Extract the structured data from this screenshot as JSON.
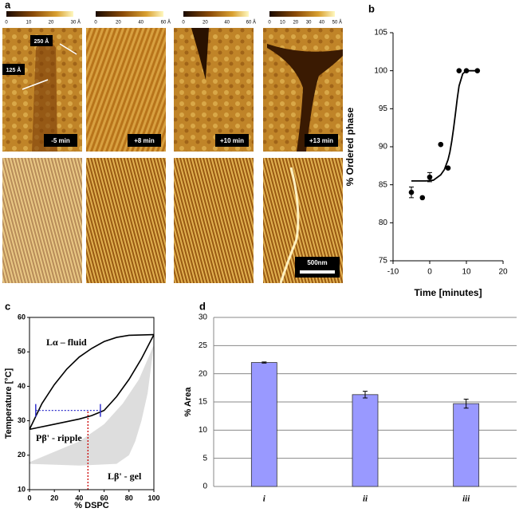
{
  "panel_labels": [
    "a",
    "b",
    "c",
    "d"
  ],
  "panel_a": {
    "colorbars": [
      {
        "ticks": [
          0,
          10,
          20,
          30
        ],
        "unit": "Å"
      },
      {
        "ticks": [
          0,
          20,
          40,
          60
        ],
        "unit": "Å"
      },
      {
        "ticks": [
          0,
          20,
          40,
          60
        ],
        "unit": "Å"
      },
      {
        "ticks": [
          0,
          10,
          20,
          30,
          40,
          50
        ],
        "unit": "Å"
      }
    ],
    "time_labels": [
      "-5 min",
      "+8 min",
      "+10 min",
      "+13 min"
    ],
    "annotations": [
      "250 Å",
      "125 Å"
    ],
    "scale_bar": "500nm"
  },
  "chart_data": [
    {
      "type": "scatter",
      "xlabel": "Time [minutes]",
      "ylabel": "% Ordered phase",
      "x": [
        -5,
        -2,
        0,
        3,
        5,
        8,
        10,
        13
      ],
      "values": [
        84,
        83.3,
        86,
        90.3,
        87.2,
        100,
        100,
        100
      ],
      "errors": [
        0.7,
        null,
        0.6,
        null,
        null,
        null,
        null,
        null
      ],
      "color": "#000000",
      "fit": {
        "x": [
          -5,
          -3,
          -1,
          1,
          3,
          4,
          5,
          5.5,
          6,
          6.5,
          7,
          7.5,
          8,
          9,
          10,
          13
        ],
        "values": [
          85.5,
          85.5,
          85.5,
          85.6,
          86.3,
          87,
          88.3,
          89.3,
          90.7,
          92.4,
          94.3,
          96.3,
          98,
          99.6,
          100,
          100
        ]
      },
      "xlim": [
        -10,
        20
      ],
      "xticks": [
        -10,
        0,
        10,
        20
      ],
      "ylim": [
        75,
        105
      ],
      "yticks": [
        75,
        80,
        85,
        90,
        95,
        100,
        105
      ]
    },
    {
      "type": "phase",
      "xlabel": "% DSPC",
      "ylabel": "Temperature [°C]",
      "xlim": [
        0,
        100
      ],
      "xticks": [
        0,
        20,
        40,
        60,
        80,
        100
      ],
      "ylim": [
        10,
        60
      ],
      "yticks": [
        10,
        20,
        30,
        40,
        50,
        60
      ],
      "curves": [
        {
          "x": [
            0,
            10,
            20,
            30,
            40,
            50,
            60,
            70,
            80,
            100
          ],
          "values": [
            27.5,
            35,
            40.5,
            45,
            48.5,
            51,
            53,
            54.2,
            54.8,
            55
          ]
        },
        {
          "x": [
            0,
            20,
            40,
            50,
            60,
            70,
            80,
            90,
            100
          ],
          "values": [
            27.5,
            29,
            30.5,
            31.5,
            33,
            37,
            42,
            48,
            55
          ]
        }
      ],
      "region": {
        "x": [
          0,
          20,
          40,
          60,
          75,
          88,
          100,
          95,
          90,
          85,
          80,
          70,
          40,
          0
        ],
        "values": [
          18,
          21,
          24,
          29,
          35,
          42,
          52,
          38,
          30,
          24,
          20,
          17.5,
          17,
          17.5
        ],
        "color": "#dddddd"
      },
      "tie_line": {
        "x": [
          5,
          57
        ],
        "value": 33,
        "color": "#3333cc"
      },
      "composition_line": {
        "x": 47,
        "values": [
          10,
          33
        ],
        "color": "#cc0000"
      },
      "phase_labels": [
        "Lα – fluid",
        "Pβ' - ripple",
        "Lβ' - gel"
      ]
    },
    {
      "type": "bar",
      "ylabel": "% Area",
      "categories": [
        "i",
        "ii",
        "iii"
      ],
      "values": [
        22,
        16.3,
        14.7
      ],
      "errors": [
        0.1,
        0.6,
        0.8
      ],
      "color": "#9999ff",
      "ylim": [
        0,
        30
      ],
      "yticks": [
        0,
        5,
        10,
        15,
        20,
        25,
        30
      ],
      "grid": true
    }
  ]
}
